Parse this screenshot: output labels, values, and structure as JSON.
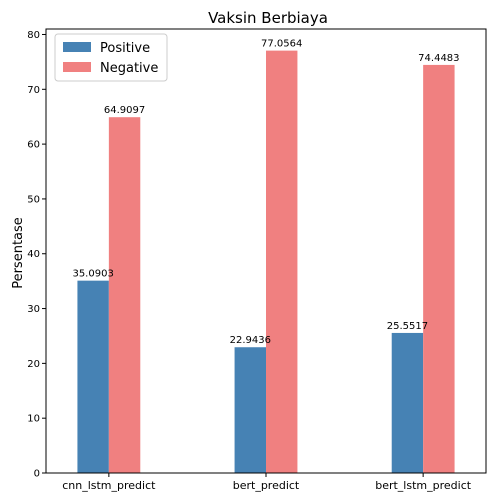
{
  "chart_data": {
    "type": "bar",
    "title": "Vaksin Berbiaya",
    "xlabel": "",
    "ylabel": "Persentase",
    "categories": [
      "cnn_lstm_predict",
      "bert_predict",
      "bert_lstm_predict"
    ],
    "series": [
      {
        "name": "Positive",
        "color": "#4682b4",
        "values": [
          35.0903,
          22.9436,
          25.5517
        ],
        "labels": [
          "35.0903",
          "22.9436",
          "25.5517"
        ]
      },
      {
        "name": "Negative",
        "color": "#f08080",
        "values": [
          64.9097,
          77.0564,
          74.4483
        ],
        "labels": [
          "64.9097",
          "77.0564",
          "74.4483"
        ]
      }
    ],
    "ylim": [
      0,
      81
    ],
    "yticks": [
      0,
      10,
      20,
      30,
      40,
      50,
      60,
      70,
      80
    ],
    "grid": false,
    "legend_position": "top-left"
  }
}
